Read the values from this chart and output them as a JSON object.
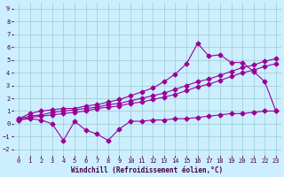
{
  "xlabel": "Windchill (Refroidissement éolien,°C)",
  "bg_color": "#cceeff",
  "grid_color": "#99cccc",
  "line_color": "#990099",
  "xlim": [
    -0.5,
    23.5
  ],
  "ylim": [
    -2.5,
    9.5
  ],
  "xticks": [
    0,
    1,
    2,
    3,
    4,
    5,
    6,
    7,
    8,
    9,
    10,
    11,
    12,
    13,
    14,
    15,
    16,
    17,
    18,
    19,
    20,
    21,
    22,
    23
  ],
  "yticks": [
    -2,
    -1,
    0,
    1,
    2,
    3,
    4,
    5,
    6,
    7,
    8,
    9
  ],
  "series1_x": [
    0,
    1,
    2,
    3,
    4,
    5,
    6,
    7,
    8,
    9,
    10,
    11,
    12,
    13,
    14,
    15,
    16,
    17,
    18,
    19,
    20,
    21,
    22,
    23
  ],
  "series1_y": [
    0.4,
    0.8,
    1.0,
    1.1,
    1.2,
    1.2,
    1.4,
    1.5,
    1.7,
    1.9,
    2.2,
    2.5,
    2.8,
    3.3,
    3.9,
    4.7,
    6.3,
    5.3,
    5.4,
    4.8,
    4.8,
    4.1,
    3.3,
    1.0
  ],
  "series2_x": [
    0,
    1,
    2,
    3,
    4,
    5,
    6,
    7,
    8,
    9,
    10,
    11,
    12,
    13,
    14,
    15,
    16,
    17,
    18,
    19,
    20,
    21,
    22,
    23
  ],
  "series2_y": [
    0.4,
    0.6,
    0.7,
    0.9,
    1.0,
    1.1,
    1.2,
    1.3,
    1.5,
    1.6,
    1.8,
    2.0,
    2.2,
    2.4,
    2.7,
    3.0,
    3.3,
    3.5,
    3.8,
    4.1,
    4.4,
    4.6,
    4.9,
    5.1
  ],
  "series3_x": [
    0,
    1,
    2,
    3,
    4,
    5,
    6,
    7,
    8,
    9,
    10,
    11,
    12,
    13,
    14,
    15,
    16,
    17,
    18,
    19,
    20,
    21,
    22,
    23
  ],
  "series3_y": [
    0.3,
    0.5,
    0.6,
    0.7,
    0.8,
    0.9,
    1.0,
    1.2,
    1.3,
    1.4,
    1.6,
    1.7,
    1.9,
    2.1,
    2.3,
    2.6,
    2.9,
    3.1,
    3.4,
    3.7,
    4.0,
    4.2,
    4.5,
    4.7
  ],
  "series4_x": [
    0,
    1,
    2,
    3,
    4,
    5,
    6,
    7,
    8,
    9,
    10,
    11,
    12,
    13,
    14,
    15,
    16,
    17,
    18,
    19,
    20,
    21,
    22,
    23
  ],
  "series4_y": [
    0.3,
    0.4,
    0.3,
    0.0,
    -1.3,
    0.2,
    -0.5,
    -0.8,
    -1.3,
    -0.4,
    0.2,
    0.2,
    0.3,
    0.3,
    0.4,
    0.4,
    0.5,
    0.6,
    0.7,
    0.8,
    0.8,
    0.9,
    1.0,
    1.0
  ],
  "marker_size": 2.5,
  "line_width": 0.8,
  "xlabel_fontsize": 5.5,
  "tick_fontsize": 5.0
}
